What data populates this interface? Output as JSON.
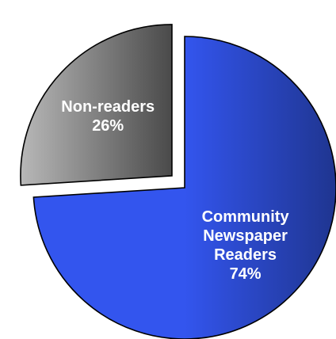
{
  "chart_data": {
    "type": "pie",
    "slices": [
      {
        "name": "Community Newspaper Readers",
        "label_lines": [
          "Community",
          "Newspaper",
          "Readers"
        ],
        "percent_label": "74%",
        "value": 74,
        "color": "#3355ee",
        "color_dark": "#1f3590",
        "exploded": false
      },
      {
        "name": "Non-readers",
        "label_lines": [
          "Non-readers"
        ],
        "percent_label": "26%",
        "value": 26,
        "color": "#b8b8b8",
        "color_dark": "#4a4a4a",
        "exploded": true
      }
    ],
    "title": "",
    "legend": "none"
  }
}
